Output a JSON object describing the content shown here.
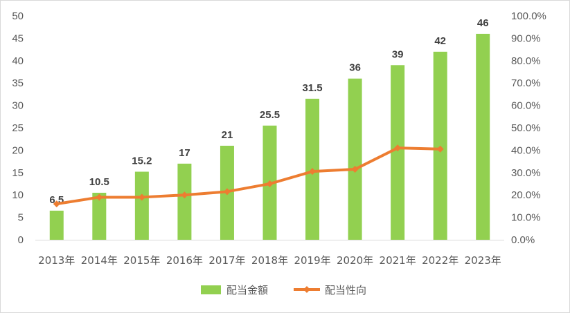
{
  "chart_data": {
    "type": "bar",
    "categories": [
      "2013年",
      "2014年",
      "2015年",
      "2016年",
      "2017年",
      "2018年",
      "2019年",
      "2020年",
      "2021年",
      "2022年",
      "2023年"
    ],
    "series": [
      {
        "name": "配当金額",
        "type": "bar",
        "axis": "left",
        "color": "#92d050",
        "values": [
          6.5,
          10.5,
          15.2,
          17,
          21,
          25.5,
          31.5,
          36,
          39,
          42,
          46
        ],
        "labels": [
          "6.5",
          "10.5",
          "15.2",
          "17",
          "21",
          "25.5",
          "31.5",
          "36",
          "39",
          "42",
          "46"
        ]
      },
      {
        "name": "配当性向",
        "type": "line",
        "axis": "right",
        "color": "#ed7d31",
        "values": [
          0.16,
          0.19,
          0.19,
          0.2,
          0.215,
          0.25,
          0.305,
          0.315,
          0.41,
          0.405,
          null
        ]
      }
    ],
    "y_left": {
      "min": 0,
      "max": 50,
      "ticks": [
        "0",
        "5",
        "10",
        "15",
        "20",
        "25",
        "30",
        "35",
        "40",
        "45",
        "50"
      ]
    },
    "y_right": {
      "min": 0,
      "max": 1,
      "ticks": [
        "0.0%",
        "10.0%",
        "20.0%",
        "30.0%",
        "40.0%",
        "50.0%",
        "60.0%",
        "70.0%",
        "80.0%",
        "90.0%",
        "100.0%"
      ]
    },
    "grid": false,
    "legend_position": "bottom"
  }
}
